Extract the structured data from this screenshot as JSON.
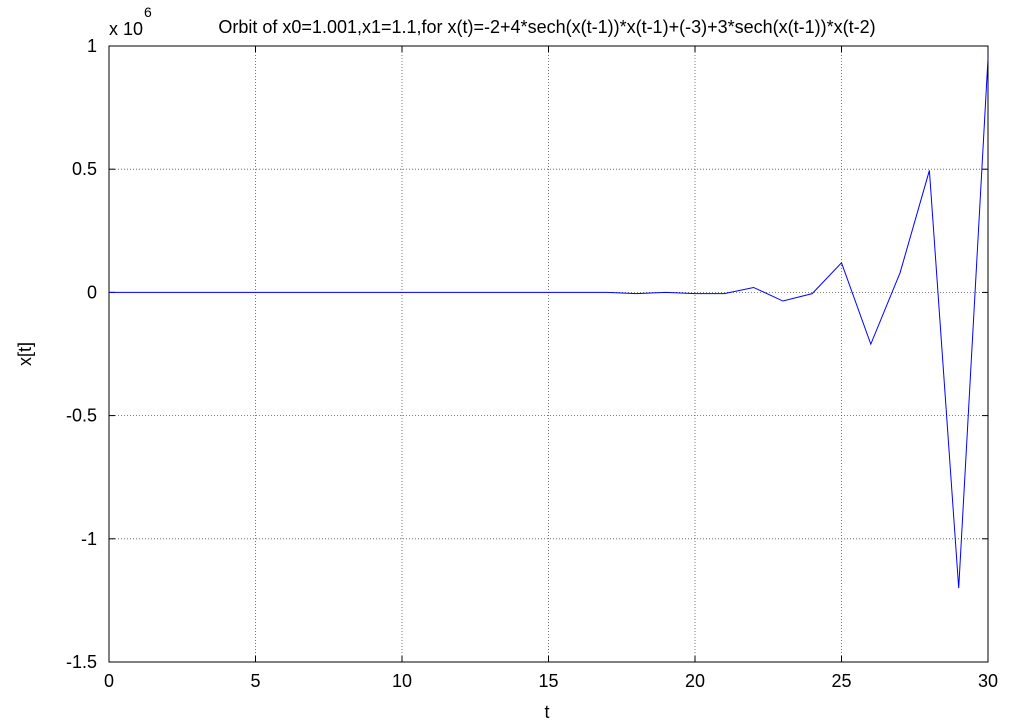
{
  "chart_data": {
    "type": "line",
    "title": "Orbit of x0=1.001,x1=1.1,for x(t)=-2+4*sech(x(t-1))*x(t-1)+(-3)+3*sech(x(t-1))*x(t-2)",
    "xlabel": "t",
    "ylabel": "x[t]",
    "y_multiplier": "x 10",
    "y_multiplier_exponent": "6",
    "xlim": [
      0,
      30
    ],
    "ylim": [
      -1.5,
      1
    ],
    "x_ticks": [
      0,
      5,
      10,
      15,
      20,
      25,
      30
    ],
    "y_ticks": [
      -1.5,
      -1,
      -0.5,
      0,
      0.5,
      1
    ],
    "grid": true,
    "series": [
      {
        "color": "#0000ff",
        "x": [
          0,
          1,
          2,
          3,
          4,
          5,
          6,
          7,
          8,
          9,
          10,
          11,
          12,
          13,
          14,
          15,
          16,
          17,
          18,
          19,
          20,
          21,
          22,
          23,
          24,
          25,
          26,
          27,
          28,
          29,
          30
        ],
        "y": [
          0,
          0,
          0,
          0,
          0,
          0,
          0,
          0,
          0,
          0,
          0,
          0,
          0,
          0,
          0,
          0,
          0,
          0,
          -0.005,
          0,
          -0.005,
          -0.005,
          0.02,
          -0.035,
          -0.005,
          0.12,
          -0.21,
          0.08,
          0.495,
          -1.2,
          0.95
        ]
      }
    ]
  }
}
